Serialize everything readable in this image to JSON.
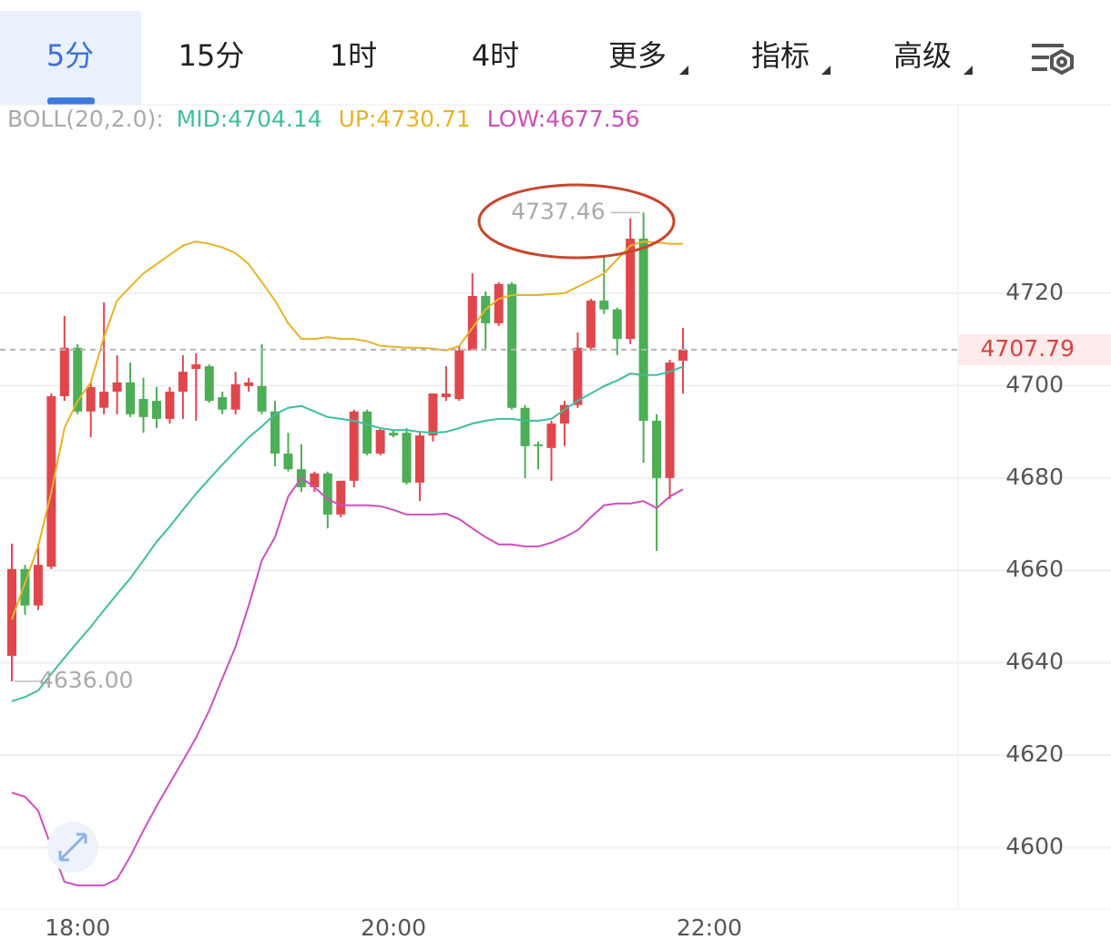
{
  "tabs": [
    "5分",
    "15分",
    "1时",
    "4时",
    "更多",
    "指标",
    "高级"
  ],
  "chart_data": {
    "type": "candlestick",
    "indicator": "BOLL(20,2.0):",
    "up_color": "#e0474c",
    "down_color": "#4cae55",
    "open": [
      4641.5,
      4660.3,
      4652.4,
      4660.8,
      4697.7,
      4708.2,
      4694.4,
      4695.2,
      4698.7,
      4700.7,
      4697.1,
      4696.7,
      4692.8,
      4698.7,
      4703.6,
      4704.2,
      4697.5,
      4694.8,
      4699.9,
      4699.9,
      4694.4,
      4685.3,
      4681.9,
      4678.0,
      4681.0,
      4672.1,
      4679.4,
      4694.4,
      4685.3,
      4689.8,
      4689.8,
      4679.0,
      4689.2,
      4697.5,
      4697.1,
      4707.6,
      4719.4,
      4713.5,
      4722.0,
      4695.2,
      4687.3,
      4686.5,
      4691.8,
      4695.8,
      4708.2,
      4718.4,
      4716.5,
      4710.1,
      4731.8,
      4692.4,
      4680.0,
      4705.4
    ],
    "high": [
      4665.8,
      4661.2,
      4665.8,
      4698.3,
      4715.1,
      4709.0,
      4700.7,
      4718.0,
      4706.6,
      4705.0,
      4701.7,
      4699.7,
      4699.7,
      4706.6,
      4707.0,
      4704.6,
      4698.7,
      4703.0,
      4701.7,
      4709.0,
      4696.7,
      4689.8,
      4687.3,
      4681.4,
      4681.4,
      4679.4,
      4694.8,
      4694.8,
      4690.8,
      4690.4,
      4690.8,
      4689.8,
      4698.3,
      4704.2,
      4708.6,
      4724.3,
      4720.4,
      4722.4,
      4722.4,
      4695.8,
      4687.9,
      4692.4,
      4696.7,
      4711.5,
      4718.8,
      4727.9,
      4716.9,
      4736.2,
      4737.46,
      4693.8,
      4705.6,
      4712.5
    ],
    "low": [
      4636.0,
      4650.4,
      4651.4,
      4660.3,
      4696.7,
      4693.8,
      4688.8,
      4693.8,
      4693.8,
      4693.2,
      4689.8,
      4690.8,
      4691.8,
      4692.8,
      4692.4,
      4696.3,
      4693.8,
      4693.8,
      4698.7,
      4693.8,
      4682.5,
      4681.4,
      4677.0,
      4677.0,
      4669.1,
      4671.5,
      4678.0,
      4684.9,
      4684.9,
      4688.8,
      4678.6,
      4675.0,
      4687.9,
      4696.7,
      4696.7,
      4707.6,
      4707.6,
      4712.9,
      4694.8,
      4680.0,
      4681.9,
      4679.4,
      4686.9,
      4695.2,
      4707.6,
      4715.5,
      4706.6,
      4709.0,
      4683.3,
      4664.2,
      4675.4,
      4698.3
    ],
    "close": [
      4660.3,
      4652.4,
      4661.2,
      4697.7,
      4708.2,
      4694.4,
      4699.7,
      4698.7,
      4700.7,
      4693.8,
      4693.2,
      4692.8,
      4698.7,
      4703.0,
      4704.6,
      4696.7,
      4694.8,
      4700.3,
      4700.7,
      4694.4,
      4685.3,
      4681.9,
      4678.0,
      4681.0,
      4672.1,
      4679.4,
      4694.4,
      4685.3,
      4690.4,
      4689.2,
      4679.0,
      4689.2,
      4698.3,
      4698.3,
      4707.6,
      4719.4,
      4713.5,
      4722.0,
      4695.2,
      4686.9,
      4686.9,
      4691.8,
      4695.8,
      4708.2,
      4718.4,
      4716.5,
      4710.1,
      4731.8,
      4692.4,
      4680.0,
      4705.0,
      4707.79
    ],
    "series": [
      {
        "name": "MID:",
        "color": "#3fbf9f",
        "values": [
          4631.7,
          4632.6,
          4634.0,
          4637.6,
          4641.1,
          4644.5,
          4647.8,
          4651.4,
          4654.9,
          4658.3,
          4662.2,
          4666.2,
          4669.5,
          4673.1,
          4676.6,
          4679.8,
          4682.9,
          4685.9,
          4688.8,
          4691.2,
          4693.8,
          4695.2,
          4695.6,
          4694.4,
          4693.2,
          4692.8,
          4692.4,
          4691.6,
          4690.8,
          4690.4,
          4690.4,
          4690.0,
          4689.8,
          4690.0,
          4690.8,
          4691.8,
          4692.4,
          4692.8,
          4692.8,
          4692.4,
          4692.4,
          4692.8,
          4694.8,
          4696.7,
          4698.3,
          4699.9,
          4701.1,
          4702.6,
          4702.3,
          4702.3,
          4703.0,
          4704.14
        ]
      },
      {
        "name": "UP:",
        "color": "#e8b325",
        "values": [
          4649.4,
          4657.3,
          4665.2,
          4677.0,
          4690.8,
          4696.7,
          4700.7,
          4710.5,
          4718.4,
          4721.4,
          4724.3,
          4726.3,
          4728.3,
          4730.3,
          4731.2,
          4730.7,
          4729.9,
          4728.7,
          4726.3,
          4722.4,
          4718.4,
          4713.5,
          4710.1,
          4710.1,
          4710.5,
          4710.1,
          4710.1,
          4709.6,
          4708.6,
          4708.4,
          4708.2,
          4708.2,
          4708.0,
          4707.6,
          4708.6,
          4712.5,
          4716.5,
          4718.8,
          4719.6,
          4719.6,
          4719.6,
          4719.8,
          4720.0,
          4721.4,
          4722.8,
          4724.3,
          4727.3,
          4730.3,
          4731.2,
          4731.0,
          4730.7,
          4730.71
        ]
      },
      {
        "name": "LOW:",
        "color": "#cf4fbd",
        "values": [
          4611.9,
          4611.0,
          4608.0,
          4600.1,
          4592.6,
          4591.8,
          4591.8,
          4591.8,
          4593.2,
          4598.1,
          4603.7,
          4609.0,
          4613.9,
          4618.8,
          4623.8,
          4629.7,
          4636.6,
          4643.5,
          4652.4,
          4662.2,
          4667.2,
          4676.0,
          4680.0,
          4678.0,
          4675.4,
          4674.1,
          4674.1,
          4674.1,
          4673.9,
          4673.1,
          4672.1,
          4672.1,
          4672.1,
          4672.3,
          4671.1,
          4669.1,
          4667.2,
          4665.6,
          4665.6,
          4665.2,
          4665.2,
          4666.0,
          4667.2,
          4668.7,
          4671.5,
          4674.1,
          4674.5,
          4674.5,
          4675.0,
          4673.5,
          4676.0,
          4677.56
        ]
      }
    ],
    "extreme_labels": {
      "high": "4737.46",
      "low": "4636.00"
    },
    "last_price": 4707.79,
    "xlim": [
      -0.9,
      71.9
    ],
    "xticks": [
      {
        "value": 5,
        "label": "18:00"
      },
      {
        "value": 29,
        "label": "20:00"
      },
      {
        "value": 53,
        "label": "22:00"
      }
    ],
    "ylim": [
      4586.7,
      4760.8
    ],
    "yticks": [
      4600,
      4620,
      4640,
      4660,
      4680,
      4700,
      4720
    ],
    "grid": true
  }
}
